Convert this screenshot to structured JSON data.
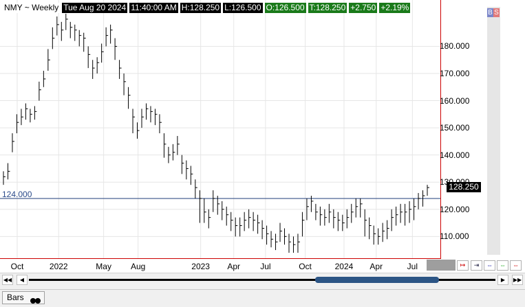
{
  "header": {
    "symbol": "NMY ~ Weekly",
    "datetime": "Tue Aug 20 2024",
    "time": "11:40:00 AM",
    "high": "H:128.250",
    "low": "L:126.500",
    "open": "O:126.500",
    "trade": "T:128.250",
    "change": "+2.750",
    "change_pct": "+2.19%"
  },
  "buttons": {
    "buy": "B",
    "sell": "S"
  },
  "reference_line": {
    "label": "124.000",
    "value": 124.0,
    "color": "#1f3d7a"
  },
  "last_price": "128.250",
  "bottom": {
    "tab_label": "Bars"
  },
  "colors": {
    "accent_red": "#cc0000",
    "info_green": "#1a7a1a",
    "scroll_thumb": "#2c5585"
  },
  "chart_data": {
    "type": "bar",
    "title": "NMY ~ Weekly",
    "ylim": [
      103,
      192
    ],
    "yticks": [
      "110.000",
      "120.000",
      "130.000",
      "140.000",
      "150.000",
      "160.000",
      "170.000",
      "180.000"
    ],
    "xticks": [
      "Oct",
      "2022",
      "May",
      "Aug",
      "2023",
      "Apr",
      "Jul",
      "Oct",
      "2024",
      "Apr",
      "Jul"
    ],
    "close": [
      132,
      134,
      145,
      152,
      154,
      157,
      155,
      156,
      164,
      168,
      175,
      183,
      188,
      186,
      190,
      187,
      186,
      184,
      183,
      177,
      172,
      174,
      178,
      184,
      186,
      180,
      172,
      167,
      162,
      154,
      149,
      154,
      157,
      156,
      155,
      152,
      144,
      140,
      141,
      144,
      137,
      135,
      133,
      128,
      124,
      119,
      117,
      124,
      122,
      120,
      118,
      116,
      114,
      114,
      116,
      117,
      116,
      115,
      113,
      111,
      109,
      108,
      112,
      110,
      108,
      107,
      108,
      116,
      121,
      123,
      119,
      118,
      117,
      119,
      117,
      116,
      115,
      117,
      119,
      121,
      122,
      116,
      114,
      111,
      110,
      112,
      113,
      117,
      118,
      119,
      119,
      120,
      121,
      124,
      125,
      128
    ],
    "high": [
      134,
      137,
      148,
      155,
      157,
      159,
      157,
      158,
      167,
      171,
      179,
      187,
      191,
      189,
      192,
      189,
      188,
      186,
      185,
      180,
      175,
      176,
      181,
      187,
      188,
      183,
      175,
      170,
      165,
      157,
      152,
      157,
      159,
      158,
      157,
      155,
      148,
      143,
      144,
      147,
      140,
      138,
      136,
      131,
      127,
      124,
      120,
      127,
      125,
      123,
      121,
      119,
      117,
      117,
      119,
      120,
      119,
      118,
      116,
      114,
      112,
      111,
      115,
      113,
      111,
      110,
      111,
      119,
      124,
      125,
      122,
      121,
      120,
      122,
      120,
      119,
      118,
      120,
      122,
      124,
      124,
      120,
      117,
      114,
      113,
      115,
      116,
      120,
      121,
      122,
      122,
      123,
      124,
      126,
      127,
      129
    ],
    "low": [
      129,
      131,
      141,
      148,
      151,
      153,
      152,
      153,
      160,
      165,
      171,
      179,
      184,
      182,
      186,
      183,
      182,
      180,
      178,
      172,
      168,
      170,
      174,
      180,
      181,
      175,
      168,
      162,
      157,
      148,
      146,
      150,
      153,
      152,
      151,
      148,
      139,
      137,
      138,
      140,
      133,
      131,
      129,
      124,
      115,
      115,
      113,
      119,
      118,
      116,
      114,
      112,
      110,
      110,
      112,
      113,
      112,
      111,
      109,
      107,
      106,
      105,
      108,
      107,
      104,
      104,
      104,
      110,
      116,
      119,
      116,
      114,
      114,
      115,
      113,
      112,
      112,
      113,
      115,
      117,
      117,
      110,
      109,
      107,
      107,
      108,
      109,
      112,
      114,
      115,
      114,
      115,
      116,
      120,
      121,
      125
    ]
  }
}
